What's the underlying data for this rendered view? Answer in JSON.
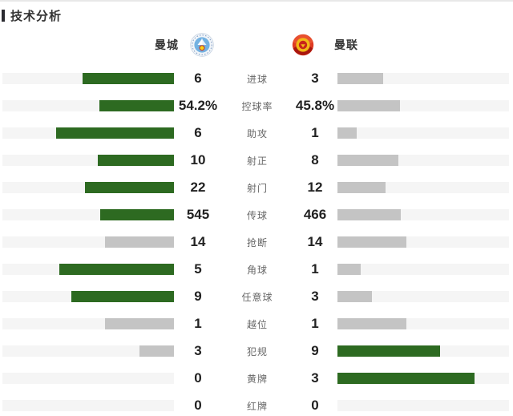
{
  "header": {
    "title": "技术分析"
  },
  "teams": {
    "home": {
      "name": "曼城"
    },
    "away": {
      "name": "曼联"
    }
  },
  "colors": {
    "leader_bar": "#2d6a21",
    "trail_bar": "#c4c4c4",
    "bar_track": "#f5f5f5",
    "value_text": "#222222",
    "label_text": "#666666",
    "header_marker": "#2b2b31",
    "city_badge_blue": "#74b2e2",
    "united_badge_red": "#de3b24",
    "united_badge_gold": "#f2b817"
  },
  "chart_data": {
    "type": "bar",
    "title": "技术分析",
    "orientation": "bilateral-horizontal",
    "legend": [
      "曼城",
      "曼联"
    ],
    "legend_position": "top",
    "grid": false,
    "bar_rule": "width = value/(home+away) * 80% of half-track; higher value green, lower/tied gray, zero none",
    "categories": [
      "进球",
      "控球率",
      "助攻",
      "射正",
      "射门",
      "传球",
      "抢断",
      "角球",
      "任意球",
      "越位",
      "犯规",
      "黄牌",
      "红牌"
    ],
    "series": [
      {
        "name": "曼城",
        "values": [
          6,
          54.2,
          6,
          10,
          22,
          545,
          14,
          5,
          9,
          1,
          3,
          0,
          0
        ]
      },
      {
        "name": "曼联",
        "values": [
          3,
          45.8,
          1,
          8,
          12,
          466,
          14,
          1,
          3,
          1,
          9,
          3,
          0
        ]
      }
    ]
  },
  "stats": [
    {
      "label": "进球",
      "home": "6",
      "away": "3",
      "home_value": 6,
      "away_value": 3
    },
    {
      "label": "控球率",
      "home": "54.2%",
      "away": "45.8%",
      "home_value": 54.2,
      "away_value": 45.8
    },
    {
      "label": "助攻",
      "home": "6",
      "away": "1",
      "home_value": 6,
      "away_value": 1
    },
    {
      "label": "射正",
      "home": "10",
      "away": "8",
      "home_value": 10,
      "away_value": 8
    },
    {
      "label": "射门",
      "home": "22",
      "away": "12",
      "home_value": 22,
      "away_value": 12
    },
    {
      "label": "传球",
      "home": "545",
      "away": "466",
      "home_value": 545,
      "away_value": 466
    },
    {
      "label": "抢断",
      "home": "14",
      "away": "14",
      "home_value": 14,
      "away_value": 14
    },
    {
      "label": "角球",
      "home": "5",
      "away": "1",
      "home_value": 5,
      "away_value": 1
    },
    {
      "label": "任意球",
      "home": "9",
      "away": "3",
      "home_value": 9,
      "away_value": 3
    },
    {
      "label": "越位",
      "home": "1",
      "away": "1",
      "home_value": 1,
      "away_value": 1
    },
    {
      "label": "犯规",
      "home": "3",
      "away": "9",
      "home_value": 3,
      "away_value": 9
    },
    {
      "label": "黄牌",
      "home": "0",
      "away": "3",
      "home_value": 0,
      "away_value": 3
    },
    {
      "label": "红牌",
      "home": "0",
      "away": "0",
      "home_value": 0,
      "away_value": 0
    }
  ]
}
